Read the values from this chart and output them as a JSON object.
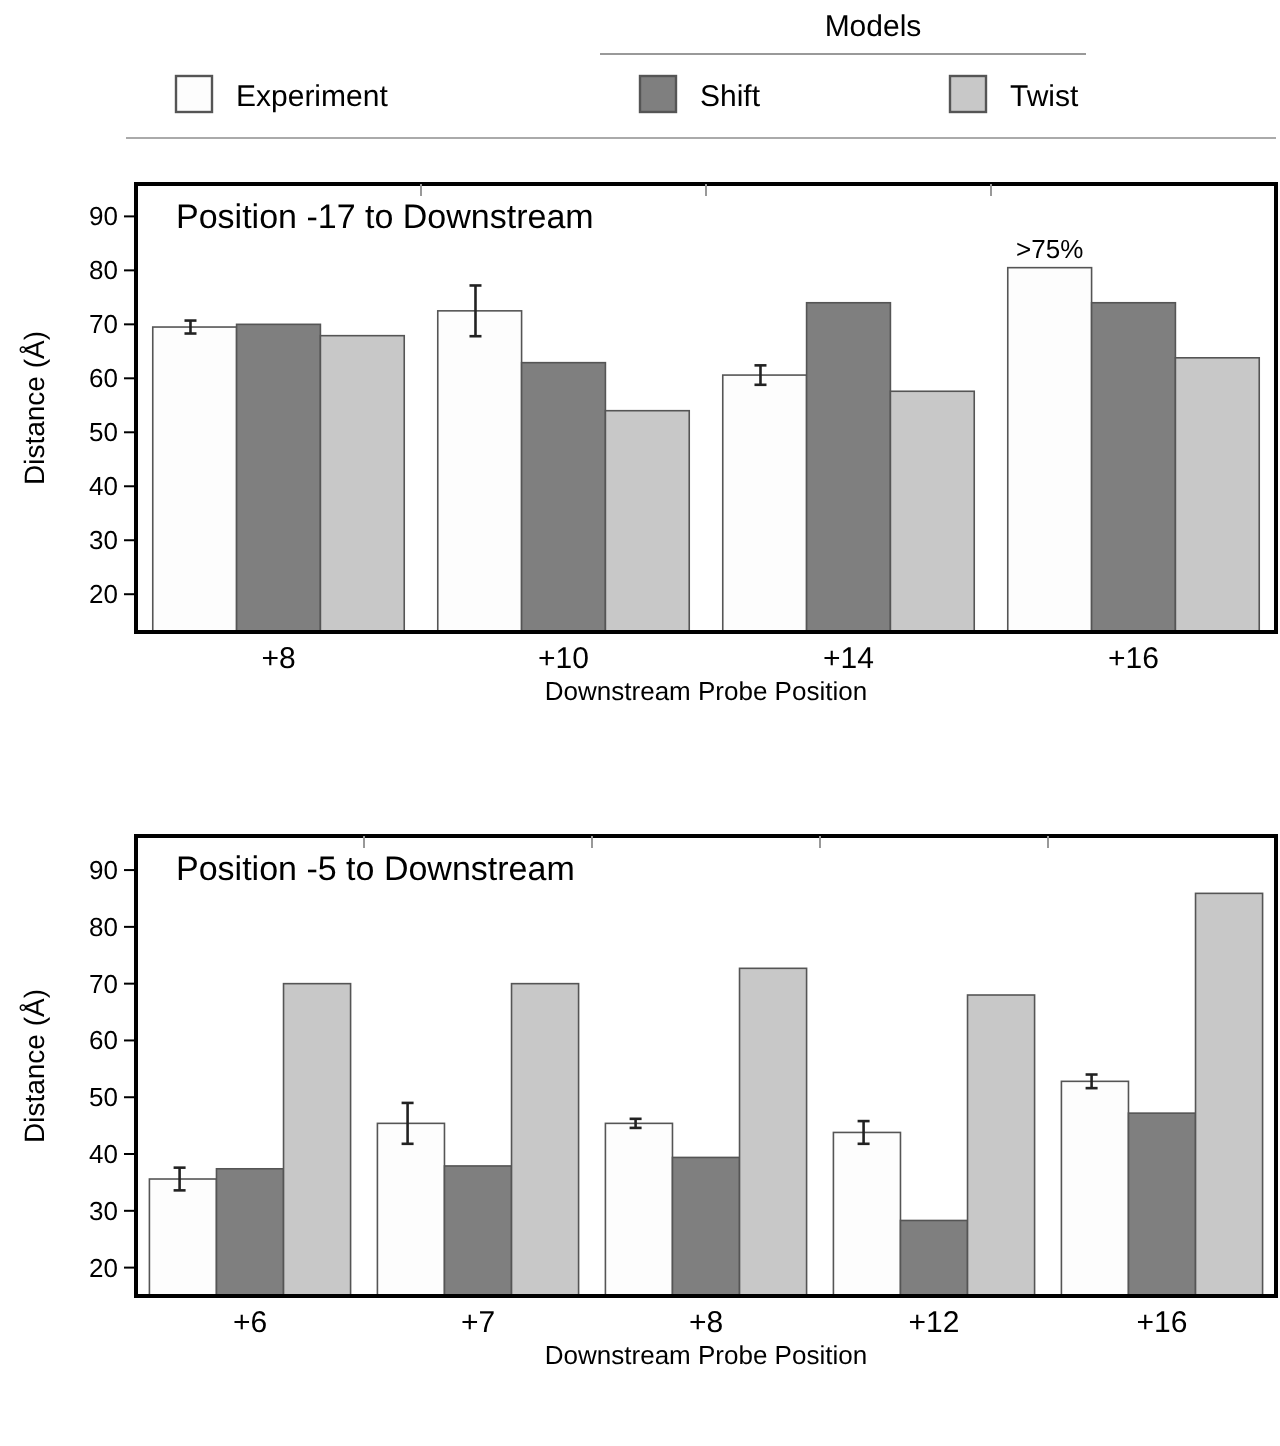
{
  "chart_data": [
    {
      "type": "bar",
      "title": "Position -17 to Downstream",
      "xlabel": "Downstream Probe Position",
      "ylabel": "Distance (Å)",
      "categories": [
        "+8",
        "+10",
        "+14",
        "+16"
      ],
      "ylim": [
        13,
        96
      ],
      "yticks": [
        20,
        30,
        40,
        50,
        60,
        70,
        80,
        90
      ],
      "legend": "top",
      "legend_title": "Models",
      "series": [
        {
          "name": "Experiment",
          "color": "#fdfdfd",
          "values": [
            69.5,
            72.5,
            60.6,
            80.5
          ],
          "errors": [
            1.2,
            4.7,
            1.8,
            null
          ]
        },
        {
          "name": "Shift",
          "color": "#7f7f7f",
          "values": [
            70,
            62.9,
            74,
            74
          ]
        },
        {
          "name": "Twist",
          "color": "#c8c8c8",
          "values": [
            67.9,
            54,
            57.6,
            63.8
          ]
        }
      ],
      "annotations": [
        ">75%"
      ]
    },
    {
      "type": "bar",
      "title": "Position -5 to Downstream",
      "xlabel": "Downstream Probe Position",
      "ylabel": "Distance (Å)",
      "categories": [
        "+6",
        "+7",
        "+8",
        "+12",
        "+16"
      ],
      "ylim": [
        15,
        96
      ],
      "yticks": [
        20,
        30,
        40,
        50,
        60,
        70,
        80,
        90
      ],
      "series": [
        {
          "color": "#fdfdfd",
          "values": [
            35.6,
            45.4,
            45.4,
            43.8,
            52.8
          ],
          "errors": [
            2,
            3.6,
            0.8,
            2,
            1.2
          ]
        },
        {
          "color": "#7f7f7f",
          "values": [
            37.4,
            37.9,
            39.4,
            28.3,
            47.2
          ]
        },
        {
          "color": "#c8c8c8",
          "values": [
            70,
            70,
            72.7,
            68,
            85.9
          ]
        }
      ]
    }
  ]
}
